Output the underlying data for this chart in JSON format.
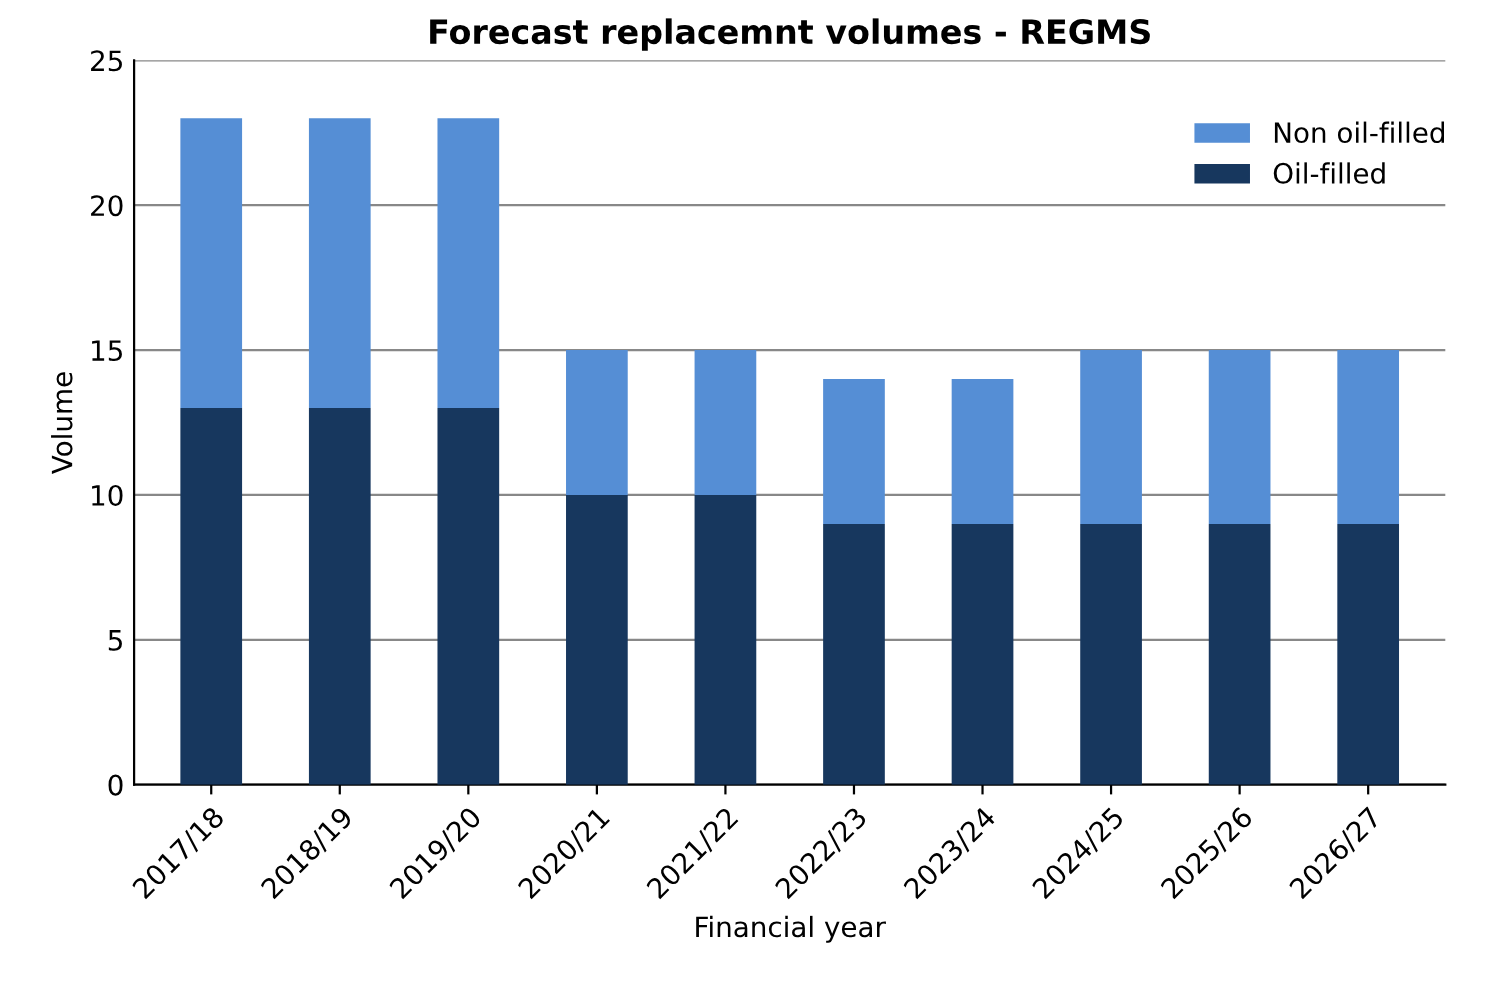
{
  "chart_data": {
    "type": "bar",
    "title": "Forecast replacemnt volumes - REGMS",
    "xlabel": "Financial year",
    "ylabel": "Volume",
    "categories": [
      "2017/18",
      "2018/19",
      "2019/20",
      "2020/21",
      "2021/22",
      "2022/23",
      "2023/24",
      "2024/25",
      "2025/26",
      "2026/27"
    ],
    "stacked": true,
    "series": [
      {
        "name": "Oil-filled",
        "color": "#17375e",
        "values": [
          13,
          13,
          13,
          10,
          10,
          9,
          9,
          9,
          9,
          9
        ]
      },
      {
        "name": "Non oil-filled",
        "color": "#558ed5",
        "values": [
          10,
          10,
          10,
          5,
          5,
          5,
          5,
          6,
          6,
          6
        ]
      }
    ],
    "ylim": [
      0,
      25
    ],
    "yticks": [
      0,
      5,
      10,
      15,
      20,
      25
    ],
    "grid": "y",
    "legend": "top right"
  }
}
